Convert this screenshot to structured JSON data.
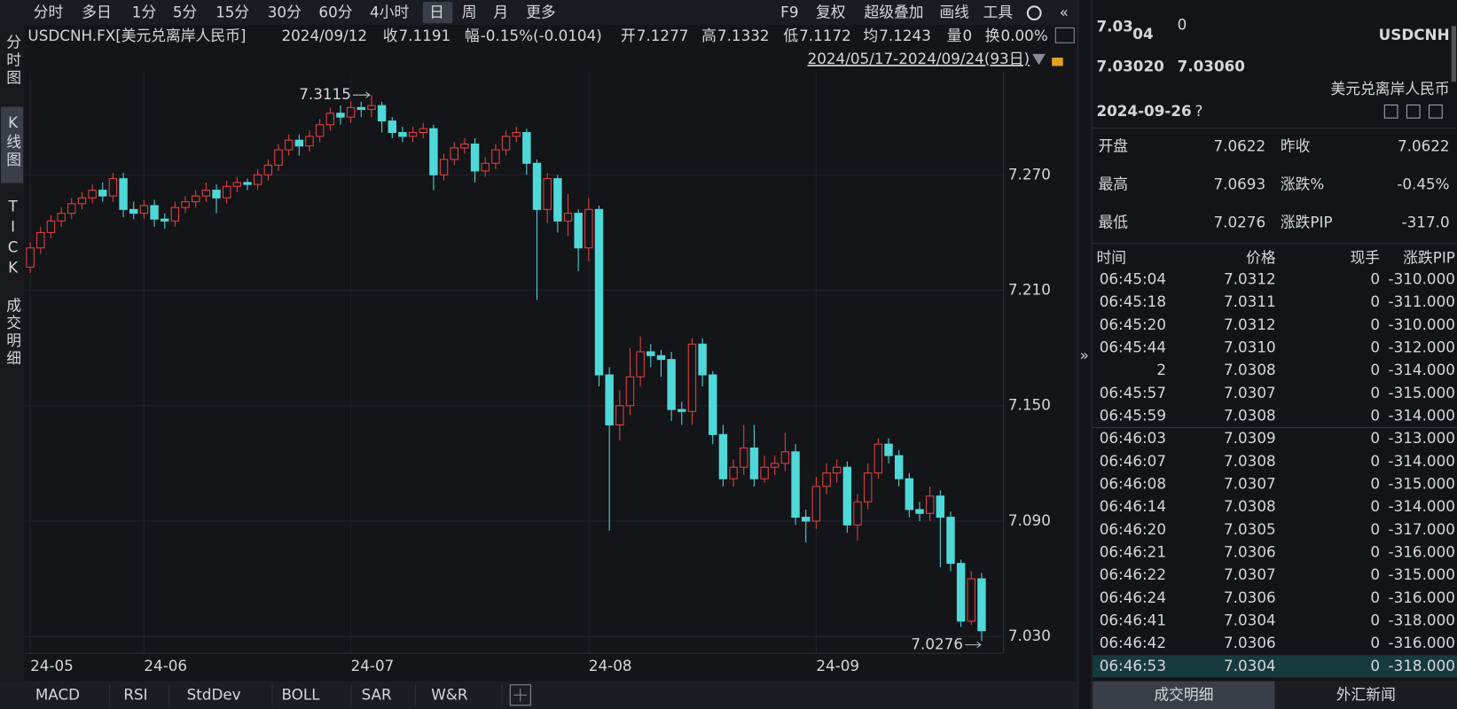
{
  "toolbar": {
    "periods": [
      "分时",
      "多日",
      "1分",
      "5分",
      "15分",
      "30分",
      "60分",
      "4小时",
      "日",
      "周",
      "月",
      "更多"
    ],
    "tools": [
      "F9",
      "复权",
      "超级叠加",
      "画线",
      "工具"
    ]
  },
  "info": {
    "symbol": "USDCNH.FX[美元兑离岸人民币]",
    "date": "2024/09/12",
    "fields": [
      {
        "label": "收",
        "value": "7.1191",
        "color": "#3fc356"
      },
      {
        "label": "幅",
        "value": "-0.15%(-0.0104)",
        "color": "#3fc356"
      },
      {
        "label": "开",
        "value": "7.1277",
        "color": "#3fc356"
      },
      {
        "label": "高",
        "value": "7.1332",
        "color": "#e8403f"
      },
      {
        "label": "低",
        "value": "7.1172",
        "color": "#3fc356"
      },
      {
        "label": "均",
        "value": "7.1243",
        "color": "#3fc356"
      },
      {
        "label": "量",
        "value": "0",
        "color": "#d6d7da"
      },
      {
        "label": "换",
        "value": "0.00%",
        "color": "#d6d7da"
      }
    ]
  },
  "date_range": "2024/05/17-2024/09/24(93日)",
  "side_tabs": [
    "分时图",
    "K线图",
    "TICK",
    "成交明细"
  ],
  "indicator_tabs": [
    "MACD",
    "RSI",
    "StdDev",
    "BOLL",
    "SAR",
    "W&R"
  ],
  "chart_data": {
    "type": "candlestick",
    "up_color": "#e8403f",
    "down_color": "#4fd8d8",
    "grid": true,
    "ylim": [
      7.0213,
      7.3232
    ],
    "yticks": [
      {
        "value": 7.03,
        "label": "7.030"
      },
      {
        "value": 7.09,
        "label": "7.090"
      },
      {
        "value": 7.15,
        "label": "7.150"
      },
      {
        "value": 7.21,
        "label": "7.210"
      },
      {
        "value": 7.27,
        "label": "7.270"
      }
    ],
    "categories": [
      "24-05",
      null,
      null,
      null,
      null,
      null,
      null,
      null,
      null,
      null,
      null,
      "24-06",
      null,
      null,
      null,
      null,
      null,
      null,
      null,
      null,
      null,
      null,
      null,
      null,
      null,
      null,
      null,
      null,
      null,
      null,
      null,
      "24-07",
      null,
      null,
      null,
      null,
      null,
      null,
      null,
      null,
      null,
      null,
      null,
      null,
      null,
      null,
      null,
      null,
      null,
      null,
      null,
      null,
      null,
      null,
      "24-08",
      null,
      null,
      null,
      null,
      null,
      null,
      null,
      null,
      null,
      null,
      null,
      null,
      null,
      null,
      null,
      null,
      null,
      null,
      null,
      null,
      null,
      "24-09",
      null,
      null,
      null,
      null,
      null,
      null,
      null,
      null,
      null,
      null,
      null,
      null,
      null,
      null,
      null,
      null
    ],
    "open": [
      7.222,
      7.232,
      7.24,
      7.246,
      7.25,
      7.255,
      7.258,
      7.262,
      7.259,
      7.268,
      7.252,
      7.25,
      7.254,
      7.247,
      7.246,
      7.253,
      7.256,
      7.259,
      7.262,
      7.258,
      7.264,
      7.266,
      7.265,
      7.27,
      7.275,
      7.283,
      7.288,
      7.285,
      7.29,
      7.296,
      7.302,
      7.3,
      7.305,
      7.304,
      7.306,
      7.298,
      7.292,
      7.29,
      7.292,
      7.294,
      7.27,
      7.278,
      7.284,
      7.286,
      7.272,
      7.276,
      7.283,
      7.29,
      7.292,
      7.276,
      7.252,
      7.268,
      7.246,
      7.25,
      7.232,
      7.252,
      7.166,
      7.14,
      7.15,
      7.165,
      7.178,
      7.176,
      7.174,
      7.148,
      7.147,
      7.182,
      7.166,
      7.135,
      7.112,
      7.118,
      7.128,
      7.112,
      7.118,
      7.12,
      7.126,
      7.092,
      7.09,
      7.108,
      7.115,
      7.118,
      7.088,
      7.1,
      7.115,
      7.13,
      7.124,
      7.112,
      7.096,
      7.094,
      7.103,
      7.092,
      7.068,
      7.038,
      7.06
    ],
    "high": [
      7.235,
      7.243,
      7.249,
      7.253,
      7.258,
      7.261,
      7.265,
      7.266,
      7.271,
      7.271,
      7.256,
      7.257,
      7.257,
      7.25,
      7.256,
      7.259,
      7.262,
      7.266,
      7.265,
      7.267,
      7.269,
      7.268,
      7.273,
      7.278,
      7.286,
      7.291,
      7.291,
      7.293,
      7.299,
      7.305,
      7.306,
      7.308,
      7.308,
      7.3115,
      7.308,
      7.3,
      7.295,
      7.295,
      7.297,
      7.296,
      7.281,
      7.287,
      7.289,
      7.289,
      7.279,
      7.286,
      7.293,
      7.295,
      7.294,
      7.278,
      7.271,
      7.27,
      7.26,
      7.252,
      7.258,
      7.254,
      7.17,
      7.158,
      7.18,
      7.186,
      7.182,
      7.179,
      7.178,
      7.152,
      7.185,
      7.185,
      7.168,
      7.14,
      7.122,
      7.14,
      7.14,
      7.124,
      7.124,
      7.136,
      7.13,
      7.096,
      7.113,
      7.12,
      7.122,
      7.121,
      7.104,
      7.12,
      7.133,
      7.133,
      7.127,
      7.115,
      7.1,
      7.108,
      7.106,
      7.095,
      7.07,
      7.064,
      7.063
    ],
    "low": [
      7.219,
      7.229,
      7.237,
      7.243,
      7.247,
      7.252,
      7.255,
      7.256,
      7.256,
      7.248,
      7.247,
      7.247,
      7.243,
      7.242,
      7.243,
      7.25,
      7.253,
      7.256,
      7.25,
      7.255,
      7.261,
      7.262,
      7.262,
      7.267,
      7.272,
      7.28,
      7.28,
      7.282,
      7.287,
      7.293,
      7.296,
      7.297,
      7.3,
      7.3,
      7.292,
      7.289,
      7.287,
      7.287,
      7.289,
      7.262,
      7.267,
      7.275,
      7.281,
      7.266,
      7.269,
      7.273,
      7.28,
      7.287,
      7.27,
      7.205,
      7.245,
      7.24,
      7.238,
      7.22,
      7.225,
      7.16,
      7.085,
      7.132,
      7.145,
      7.16,
      7.17,
      7.165,
      7.142,
      7.14,
      7.14,
      7.16,
      7.13,
      7.108,
      7.108,
      7.114,
      7.108,
      7.11,
      7.114,
      7.116,
      7.088,
      7.079,
      7.086,
      7.104,
      7.11,
      7.084,
      7.08,
      7.096,
      7.112,
      7.12,
      7.108,
      7.092,
      7.09,
      7.09,
      7.066,
      7.064,
      7.035,
      7.036,
      7.0276
    ],
    "close": [
      7.232,
      7.24,
      7.246,
      7.25,
      7.255,
      7.258,
      7.262,
      7.259,
      7.268,
      7.252,
      7.25,
      7.254,
      7.247,
      7.246,
      7.253,
      7.256,
      7.259,
      7.262,
      7.258,
      7.264,
      7.266,
      7.265,
      7.27,
      7.275,
      7.283,
      7.288,
      7.285,
      7.29,
      7.296,
      7.302,
      7.3,
      7.305,
      7.304,
      7.306,
      7.298,
      7.292,
      7.29,
      7.292,
      7.294,
      7.27,
      7.278,
      7.284,
      7.286,
      7.272,
      7.276,
      7.283,
      7.29,
      7.292,
      7.276,
      7.252,
      7.268,
      7.246,
      7.25,
      7.232,
      7.252,
      7.166,
      7.14,
      7.15,
      7.165,
      7.178,
      7.176,
      7.174,
      7.148,
      7.147,
      7.182,
      7.166,
      7.135,
      7.112,
      7.118,
      7.128,
      7.112,
      7.118,
      7.12,
      7.126,
      7.092,
      7.09,
      7.108,
      7.115,
      7.118,
      7.088,
      7.1,
      7.115,
      7.13,
      7.124,
      7.112,
      7.096,
      7.094,
      7.103,
      7.092,
      7.068,
      7.038,
      7.06,
      7.033
    ]
  },
  "quote": {
    "price_head": "7.03",
    "price_big": "04",
    "price_tail": "0",
    "bid": "7.03020",
    "ask": "7.03060",
    "symbol": "USDCNH",
    "name": "美元兑离岸人民币",
    "date": "2024-09-26",
    "help": "?",
    "stats": [
      [
        {
          "label": "开盘",
          "value": "7.0622"
        },
        {
          "label": "昨收",
          "value": "7.0622"
        }
      ],
      [
        {
          "label": "最高",
          "value": "7.0693",
          "color": "#e8403f"
        },
        {
          "label": "涨跌%",
          "value": "-0.45%",
          "color": "#3fc356"
        }
      ],
      [
        {
          "label": "最低",
          "value": "7.0276",
          "color": "#3fc356"
        },
        {
          "label": "涨跌PIP",
          "value": "-317.0",
          "color": "#3fc356"
        }
      ]
    ],
    "trades": {
      "columns": [
        "时间",
        "价格",
        "现手",
        "涨跌PIP"
      ],
      "rows": [
        [
          "06:45:04",
          "7.0312",
          "0",
          "-310.000"
        ],
        [
          "06:45:18",
          "7.0311",
          "0",
          "-311.000"
        ],
        [
          "06:45:20",
          "7.0312",
          "0",
          "-310.000"
        ],
        [
          "06:45:44",
          "7.0310",
          "0",
          "-312.000"
        ],
        [
          "2",
          "7.0308",
          "0",
          "-314.000"
        ],
        [
          "06:45:57",
          "7.0307",
          "0",
          "-315.000"
        ],
        [
          "06:45:59",
          "7.0308",
          "0",
          "-314.000"
        ],
        [
          "06:46:03",
          "7.0309",
          "0",
          "-313.000"
        ],
        [
          "06:46:07",
          "7.0308",
          "0",
          "-314.000"
        ],
        [
          "06:46:08",
          "7.0307",
          "0",
          "-315.000"
        ],
        [
          "06:46:14",
          "7.0308",
          "0",
          "-314.000"
        ],
        [
          "06:46:20",
          "7.0305",
          "0",
          "-317.000"
        ],
        [
          "06:46:21",
          "7.0306",
          "0",
          "-316.000"
        ],
        [
          "06:46:22",
          "7.0307",
          "0",
          "-315.000"
        ],
        [
          "06:46:24",
          "7.0306",
          "0",
          "-316.000"
        ],
        [
          "06:46:41",
          "7.0304",
          "0",
          "-318.000"
        ],
        [
          "06:46:42",
          "7.0306",
          "0",
          "-316.000"
        ],
        [
          "06:46:53",
          "7.0304",
          "0",
          "-318.000"
        ]
      ]
    },
    "tabs": [
      "成交明细",
      "外汇新闻"
    ]
  }
}
